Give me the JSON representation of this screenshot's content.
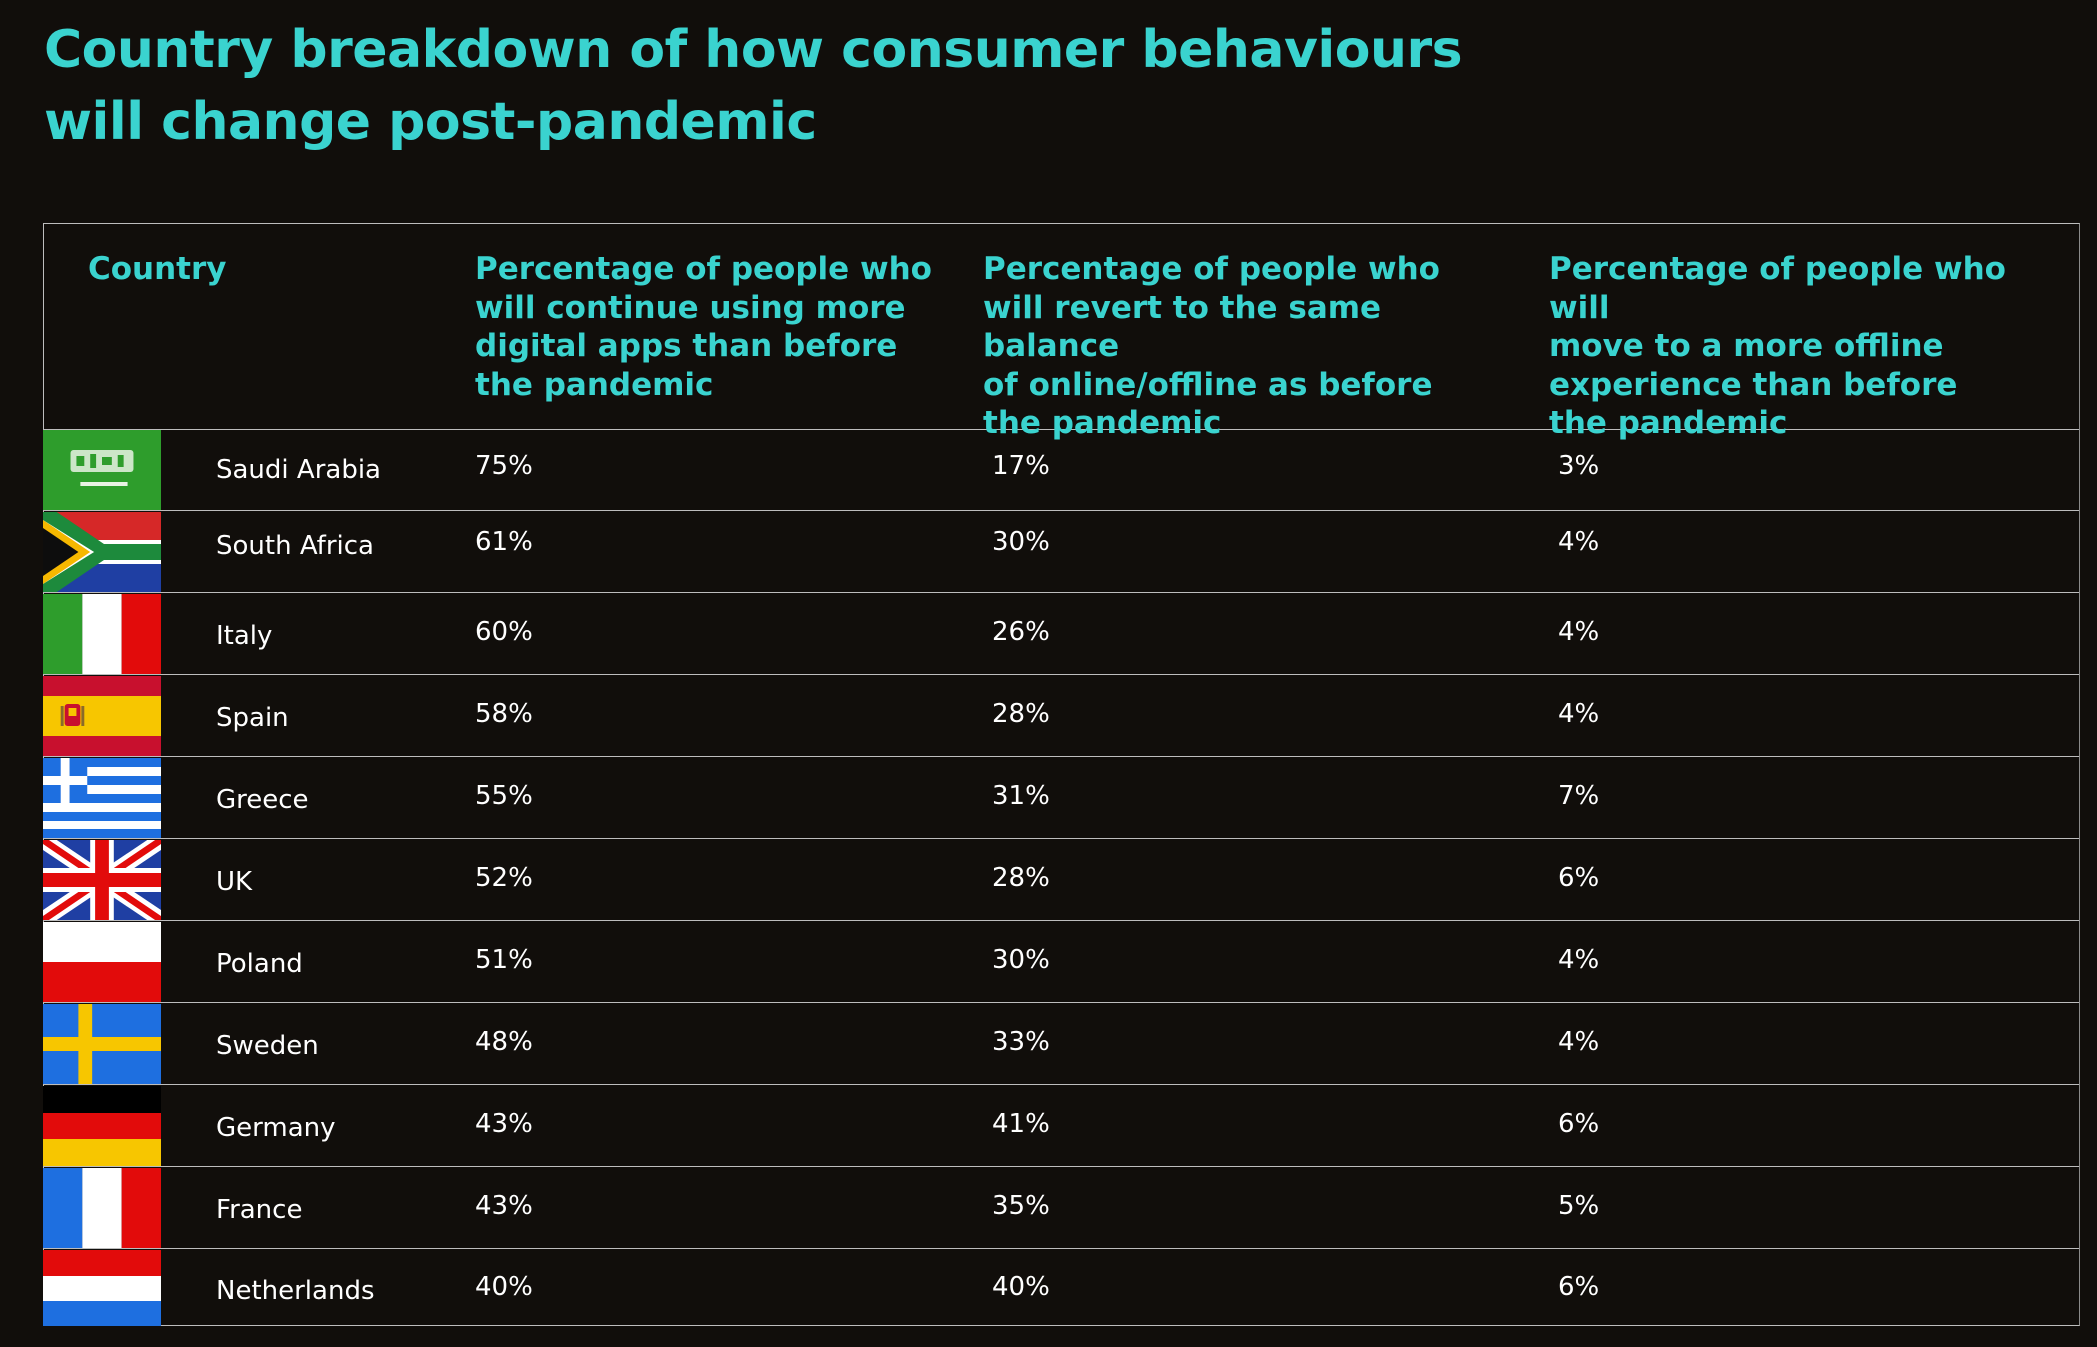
{
  "title": "Country breakdown of how consumer behaviours will change post-pandemic",
  "columns": {
    "country": "Country",
    "more_digital": "Percentage of people who\nwill continue using more\ndigital apps than before\nthe pandemic",
    "same_balance": "Percentage of people who\nwill revert to the same balance\nof online/offline as before\nthe pandemic",
    "more_offline": "Percentage of people who will\nmove to a more offline\nexperience than before\nthe pandemic"
  },
  "rows": [
    {
      "country": "Saudi Arabia",
      "flag": "saudi-arabia-flag-icon",
      "more_digital": "75%",
      "same_balance": "17%",
      "more_offline": "3%"
    },
    {
      "country": "South Africa",
      "flag": "south-africa-flag-icon",
      "more_digital": "61%",
      "same_balance": "30%",
      "more_offline": "4%"
    },
    {
      "country": "Italy",
      "flag": "italy-flag-icon",
      "more_digital": "60%",
      "same_balance": "26%",
      "more_offline": "4%"
    },
    {
      "country": "Spain",
      "flag": "spain-flag-icon",
      "more_digital": "58%",
      "same_balance": "28%",
      "more_offline": "4%"
    },
    {
      "country": "Greece",
      "flag": "greece-flag-icon",
      "more_digital": "55%",
      "same_balance": "31%",
      "more_offline": "7%"
    },
    {
      "country": "UK",
      "flag": "uk-flag-icon",
      "more_digital": "52%",
      "same_balance": "28%",
      "more_offline": "6%"
    },
    {
      "country": "Poland",
      "flag": "poland-flag-icon",
      "more_digital": "51%",
      "same_balance": "30%",
      "more_offline": "4%"
    },
    {
      "country": "Sweden",
      "flag": "sweden-flag-icon",
      "more_digital": "48%",
      "same_balance": "33%",
      "more_offline": "4%"
    },
    {
      "country": "Germany",
      "flag": "germany-flag-icon",
      "more_digital": "43%",
      "same_balance": "41%",
      "more_offline": "6%"
    },
    {
      "country": "France",
      "flag": "france-flag-icon",
      "more_digital": "43%",
      "same_balance": "35%",
      "more_offline": "5%"
    },
    {
      "country": "Netherlands",
      "flag": "netherlands-flag-icon",
      "more_digital": "40%",
      "same_balance": "40%",
      "more_offline": "6%"
    }
  ],
  "colors": {
    "background": "#110e0b",
    "accent": "#3ad3cf",
    "text": "#ffffff",
    "rule": "#bdbdbd"
  }
}
